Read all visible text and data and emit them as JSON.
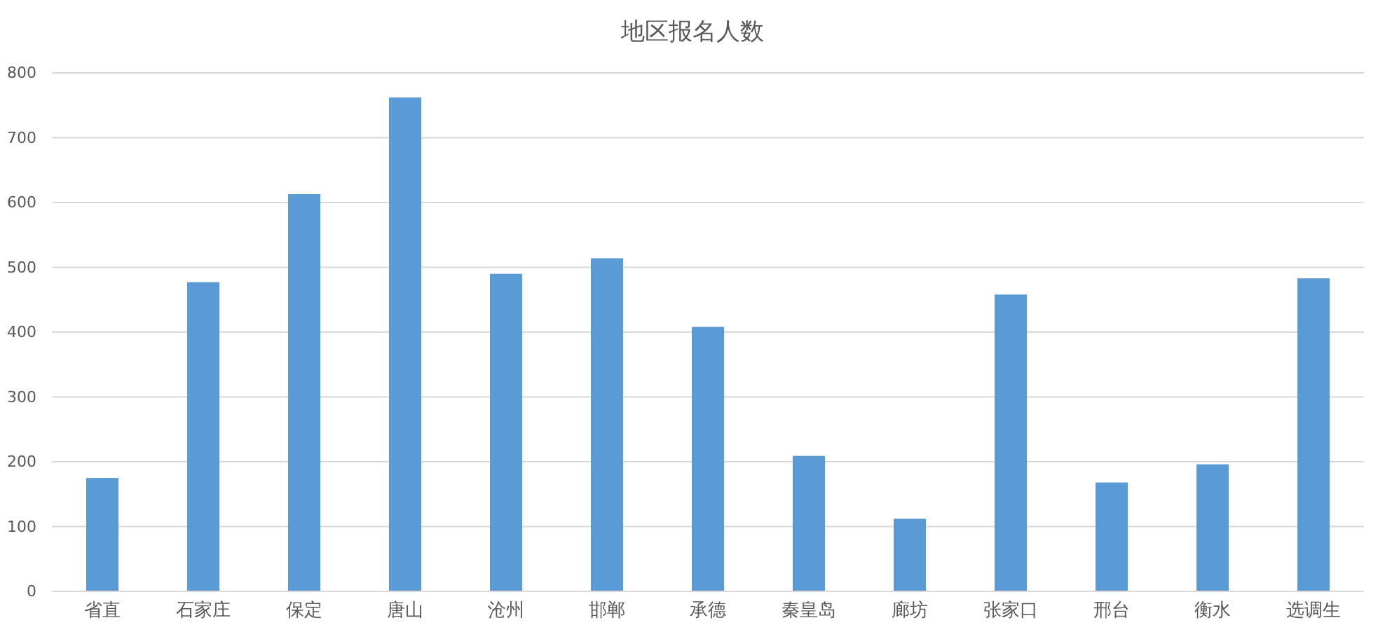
{
  "chart_data": {
    "type": "bar",
    "title": "地区报名人数",
    "categories": [
      "省直",
      "石家庄",
      "保定",
      "唐山",
      "沧州",
      "邯郸",
      "承德",
      "秦皇岛",
      "廊坊",
      "张家口",
      "邢台",
      "衡水",
      "选调生"
    ],
    "values": [
      175,
      477,
      613,
      762,
      490,
      514,
      408,
      209,
      112,
      458,
      168,
      196,
      483
    ],
    "color": "#5b9bd5",
    "ylim": [
      0,
      800
    ],
    "yticks": [
      0,
      100,
      200,
      300,
      400,
      500,
      600,
      700,
      800
    ],
    "grid": "y"
  }
}
